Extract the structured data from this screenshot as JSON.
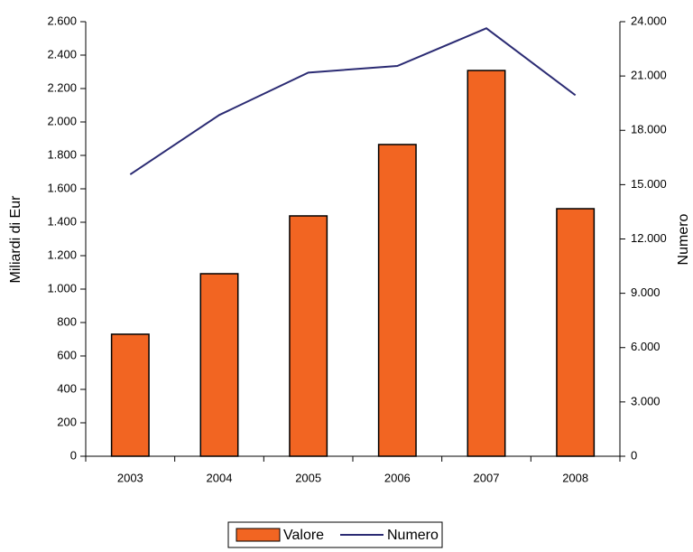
{
  "chart_data": {
    "type": "bar",
    "categories": [
      "2003",
      "2004",
      "2005",
      "2006",
      "2007",
      "2008"
    ],
    "series": [
      {
        "name": "Valore",
        "type": "bar",
        "color": "#f26522",
        "values": [
          730,
          1092,
          1438,
          1865,
          2308,
          1481
        ]
      },
      {
        "name": "Numero",
        "type": "line",
        "color": "#2b2b73",
        "axis": "y2",
        "values": [
          15566,
          18846,
          21189,
          21553,
          23636,
          19940
        ]
      }
    ],
    "ylabel": "Miliardi di Eur",
    "y2label": "Numero",
    "ylim": [
      0,
      2600
    ],
    "yticks": [
      0,
      200,
      400,
      600,
      800,
      {
        "value": 1000,
        "label": "1.000"
      },
      {
        "value": 1200,
        "label": "1.200"
      },
      {
        "value": 1400,
        "label": "1.400"
      },
      {
        "value": 1600,
        "label": "1.600"
      },
      {
        "value": 1800,
        "label": "1.800"
      },
      {
        "value": 2000,
        "label": "2.000"
      },
      {
        "value": 2200,
        "label": "2.200"
      },
      {
        "value": 2400,
        "label": "2.400"
      },
      {
        "value": 2600,
        "label": "2.600"
      }
    ],
    "y2lim": [
      0,
      24000
    ],
    "y2ticks": [
      0,
      {
        "value": 3000,
        "label": "3.000"
      },
      {
        "value": 6000,
        "label": "6.000"
      },
      {
        "value": 9000,
        "label": "9.000"
      },
      {
        "value": 12000,
        "label": "12.000"
      },
      {
        "value": 15000,
        "label": "15.000"
      },
      {
        "value": 18000,
        "label": "18.000"
      },
      {
        "value": 21000,
        "label": "21.000"
      },
      {
        "value": 24000,
        "label": "24.000"
      }
    ],
    "grid": false,
    "legend": "bottom"
  }
}
